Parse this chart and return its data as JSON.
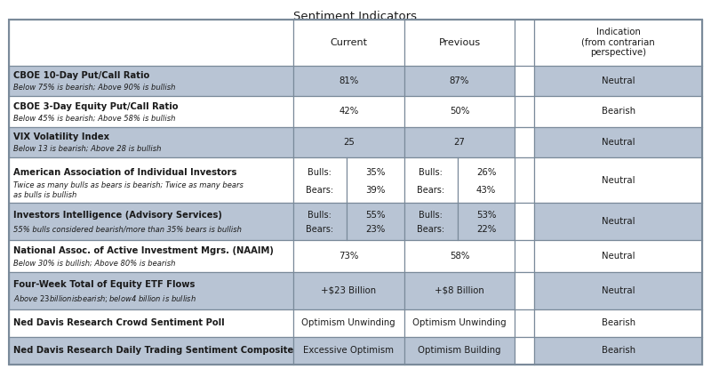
{
  "title": "Sentiment Indicators",
  "light_blue": "#b8c4d4",
  "white": "#ffffff",
  "border_color": "#7a8a9a",
  "text_dark": "#1a1a1a",
  "rows": [
    {
      "label_bold": "CBOE 10-Day Put/Call Ratio",
      "label_italic": "Below 75% is bearish; Above 90% is bullish",
      "current": "81%",
      "previous": "87%",
      "has_sub": false,
      "indication": "Neutral",
      "bg": "light"
    },
    {
      "label_bold": "CBOE 3-Day Equity Put/Call Ratio",
      "label_italic": "Below 45% is bearish; Above 58% is bullish",
      "current": "42%",
      "previous": "50%",
      "has_sub": false,
      "indication": "Bearish",
      "bg": "white"
    },
    {
      "label_bold": "VIX Volatility Index",
      "label_italic": "Below 13 is bearish; Above 28 is bullish",
      "current": "25",
      "previous": "27",
      "has_sub": false,
      "indication": "Neutral",
      "bg": "light"
    },
    {
      "label_bold": "American Association of Individual Investors",
      "label_italic": "Twice as many bulls as bears is bearish; Twice as many bears\nas bulls is bullish",
      "current_bulls": "35%",
      "current_bears": "39%",
      "previous_bulls": "26%",
      "previous_bears": "43%",
      "has_sub": true,
      "indication": "Neutral",
      "bg": "white"
    },
    {
      "label_bold": "Investors Intelligence (Advisory Services)",
      "label_italic": "55% bulls considered bearish/more than 35% bears is bullish",
      "current_bulls": "55%",
      "current_bears": "23%",
      "previous_bulls": "53%",
      "previous_bears": "22%",
      "has_sub": true,
      "indication": "Neutral",
      "bg": "light"
    },
    {
      "label_bold": "National Assoc. of Active Investment Mgrs. (NAAIM)",
      "label_italic": "Below 30% is bullish; Above 80% is bearish",
      "current": "73%",
      "previous": "58%",
      "has_sub": false,
      "indication": "Neutral",
      "bg": "white"
    },
    {
      "label_bold": "Four-Week Total of Equity ETF Flows",
      "label_italic": "Above $23 billion is bearish; below $4 billion is bullish",
      "current": "+$23 Billion",
      "previous": "+$8 Billion",
      "has_sub": false,
      "indication": "Neutral",
      "bg": "light"
    },
    {
      "label_bold": "Ned Davis Research Crowd Sentiment Poll",
      "label_italic": "",
      "current": "Optimism Unwinding",
      "previous": "Optimism Unwinding",
      "has_sub": false,
      "indication": "Bearish",
      "bg": "white"
    },
    {
      "label_bold": "Ned Davis Research Daily Trading Sentiment Composite",
      "label_italic": "",
      "current": "Excessive Optimism",
      "previous": "Optimism Building",
      "has_sub": false,
      "indication": "Bearish",
      "bg": "light"
    }
  ]
}
